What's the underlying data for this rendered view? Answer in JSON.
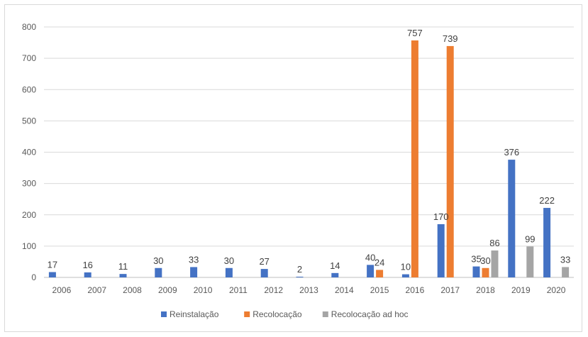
{
  "chart_data": {
    "type": "bar",
    "categories": [
      "2006",
      "2007",
      "2008",
      "2009",
      "2010",
      "2011",
      "2012",
      "2013",
      "2014",
      "2015",
      "2016",
      "2017",
      "2018",
      "2019",
      "2020"
    ],
    "series": [
      {
        "name": "Reinstalação",
        "color": "#4472c4",
        "values": [
          17,
          16,
          11,
          30,
          33,
          30,
          27,
          2,
          14,
          40,
          10,
          170,
          35,
          376,
          222
        ]
      },
      {
        "name": "Recolocação",
        "color": "#ed7d31",
        "values": [
          null,
          null,
          null,
          null,
          null,
          null,
          null,
          null,
          null,
          24,
          757,
          739,
          30,
          null,
          null
        ]
      },
      {
        "name": "Recolocação ad hoc",
        "color": "#a5a5a5",
        "values": [
          null,
          null,
          null,
          null,
          null,
          null,
          null,
          null,
          null,
          null,
          null,
          null,
          86,
          99,
          33
        ]
      }
    ],
    "ylim": [
      0,
      800
    ],
    "yticks": [
      0,
      100,
      200,
      300,
      400,
      500,
      600,
      700,
      800
    ],
    "grid": true,
    "legend_position": "bottom",
    "title": "",
    "xlabel": "",
    "ylabel": ""
  }
}
